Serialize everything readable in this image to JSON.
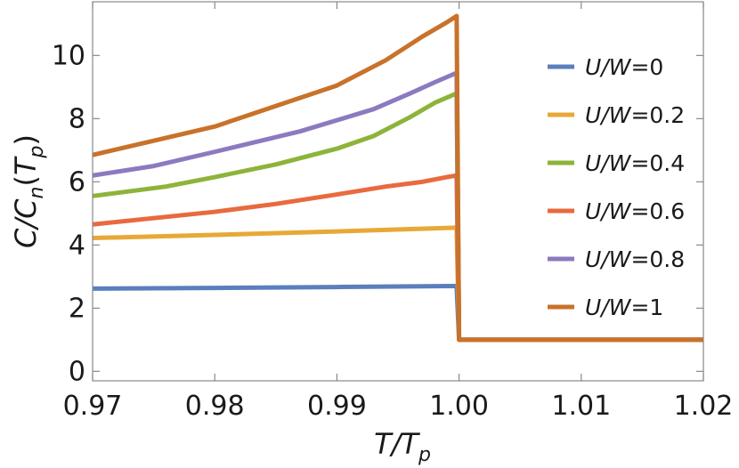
{
  "chart_data": {
    "type": "line",
    "xlabel": "T/Tp",
    "ylabel": "C/Cn(Tp)",
    "xlim": [
      0.97,
      1.02
    ],
    "ylim": [
      -0.3,
      11.7
    ],
    "xticks": [
      "0.97",
      "0.98",
      "0.99",
      "1.00",
      "1.01",
      "1.02"
    ],
    "yticks": [
      "0",
      "2",
      "4",
      "6",
      "8",
      "10"
    ],
    "legend_position": "right",
    "after_transition": {
      "x": [
        1.0,
        1.02
      ],
      "y": [
        1.0,
        1.0
      ]
    },
    "series": [
      {
        "name": "U/W=0",
        "color": "#5b7fbd",
        "x": [
          0.97,
          0.98,
          0.99,
          0.9998
        ],
        "y": [
          2.62,
          2.64,
          2.67,
          2.7
        ]
      },
      {
        "name": "U/W=0.2",
        "color": "#e8a838",
        "x": [
          0.97,
          0.98,
          0.99,
          0.9998
        ],
        "y": [
          4.22,
          4.32,
          4.43,
          4.55
        ]
      },
      {
        "name": "U/W=0.4",
        "color": "#8db43a",
        "x": [
          0.97,
          0.976,
          0.98,
          0.985,
          0.99,
          0.993,
          0.996,
          0.998,
          0.9998
        ],
        "y": [
          5.55,
          5.85,
          6.15,
          6.55,
          7.05,
          7.45,
          8.05,
          8.5,
          8.8
        ]
      },
      {
        "name": "U/W=0.6",
        "color": "#e86a3e",
        "x": [
          0.97,
          0.98,
          0.985,
          0.99,
          0.994,
          0.997,
          0.999,
          0.9998
        ],
        "y": [
          4.65,
          5.05,
          5.3,
          5.6,
          5.85,
          6.0,
          6.15,
          6.2
        ]
      },
      {
        "name": "U/W=0.8",
        "color": "#8c7ac0",
        "x": [
          0.97,
          0.975,
          0.98,
          0.987,
          0.99,
          0.993,
          0.996,
          0.998,
          0.9998
        ],
        "y": [
          6.2,
          6.5,
          6.95,
          7.6,
          7.95,
          8.3,
          8.8,
          9.15,
          9.45
        ]
      },
      {
        "name": "U/W=1",
        "color": "#c8722a",
        "x": [
          0.97,
          0.98,
          0.985,
          0.99,
          0.994,
          0.997,
          0.999,
          0.9998
        ],
        "y": [
          6.85,
          7.75,
          8.4,
          9.05,
          9.85,
          10.6,
          11.05,
          11.25
        ]
      }
    ]
  }
}
